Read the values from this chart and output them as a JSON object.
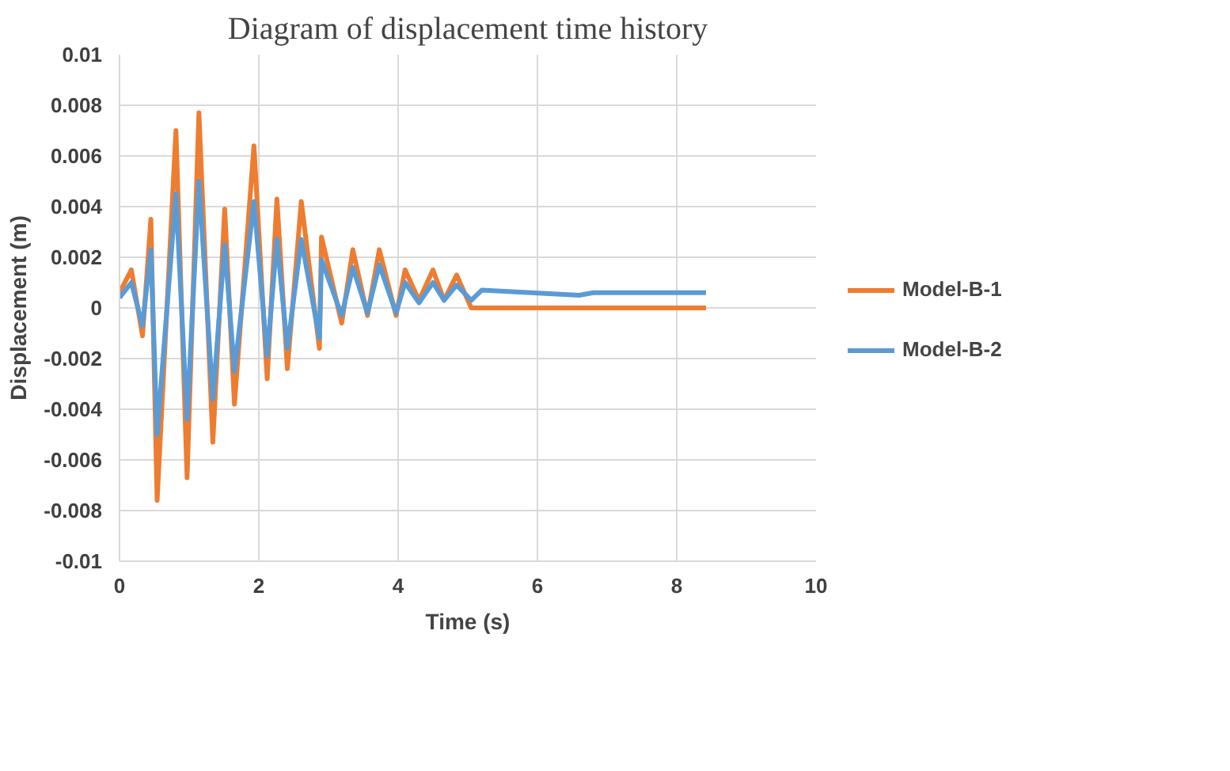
{
  "chart_data": {
    "type": "line",
    "title": "Diagram of displacement time history",
    "xlabel": "Time (s)",
    "ylabel": "Displacement (m)",
    "xlim": [
      0,
      10
    ],
    "xticks": [
      0,
      2,
      4,
      6,
      8,
      10
    ],
    "ylim": [
      -0.01,
      0.01
    ],
    "yticks": [
      -0.01,
      -0.008,
      -0.006,
      -0.004,
      -0.002,
      0,
      0.002,
      0.004,
      0.006,
      0.008,
      0.01
    ],
    "grid": true,
    "legend": "right",
    "marker": "none",
    "line_style": "solid",
    "series": [
      {
        "name": "Model-B-1",
        "color": "#ed7d31",
        "x": [
          0,
          0.17,
          0.33,
          0.45,
          0.54,
          0.81,
          0.97,
          1.14,
          1.34,
          1.51,
          1.65,
          1.93,
          2.12,
          2.26,
          2.41,
          2.61,
          2.87,
          2.9,
          3.19,
          3.35,
          3.56,
          3.73,
          3.97,
          4.1,
          4.3,
          4.5,
          4.66,
          4.84,
          5.05,
          8.42
        ],
        "values": [
          0.0006,
          0.0015,
          -0.0011,
          0.0035,
          -0.0076,
          0.007,
          -0.0067,
          0.0077,
          -0.0053,
          0.0039,
          -0.0038,
          0.0064,
          -0.0028,
          0.0043,
          -0.0024,
          0.0042,
          -0.0016,
          0.0028,
          -0.0006,
          0.0023,
          -0.0003,
          0.0023,
          -0.0003,
          0.0015,
          0.0003,
          0.0015,
          0.0003,
          0.0013,
          0,
          0
        ]
      },
      {
        "name": "Model-B-2",
        "color": "#5b9bd5",
        "x": [
          0,
          0.17,
          0.33,
          0.45,
          0.54,
          0.81,
          0.97,
          1.14,
          1.34,
          1.51,
          1.65,
          1.93,
          2.12,
          2.26,
          2.41,
          2.61,
          2.87,
          2.9,
          3.19,
          3.35,
          3.56,
          3.73,
          3.97,
          4.1,
          4.3,
          4.5,
          4.66,
          4.84,
          5.05,
          5.2,
          6.6,
          6.8,
          8.42
        ],
        "values": [
          0.0004,
          0.001,
          -0.0007,
          0.0023,
          -0.005,
          0.0045,
          -0.0044,
          0.005,
          -0.0036,
          0.0025,
          -0.0025,
          0.0042,
          -0.0019,
          0.0027,
          -0.0016,
          0.0027,
          -0.0012,
          0.0019,
          -0.0003,
          0.0016,
          -0.0002,
          0.0017,
          -0.0002,
          0.001,
          0.0002,
          0.001,
          0.0003,
          0.0009,
          0.0003,
          0.0007,
          0.0005,
          0.0006,
          0.0006
        ]
      }
    ]
  }
}
